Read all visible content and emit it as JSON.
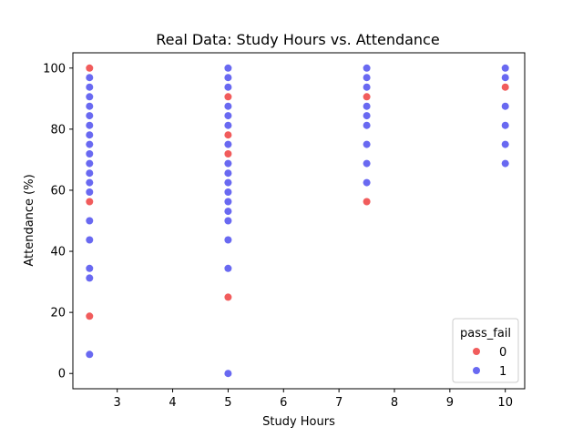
{
  "chart_data": {
    "type": "scatter",
    "title": "Real Data: Study Hours vs. Attendance",
    "xlabel": "Study Hours",
    "ylabel": "Attendance (%)",
    "xlim": [
      2.2,
      10.35
    ],
    "ylim": [
      -5,
      105
    ],
    "xticks": [
      3,
      4,
      5,
      6,
      7,
      8,
      9,
      10
    ],
    "yticks": [
      0,
      20,
      40,
      60,
      80,
      100
    ],
    "grid": false,
    "legend": {
      "title": "pass_fail",
      "placement": "lower-right"
    },
    "series": [
      {
        "name": "0",
        "color": "#ee3333",
        "points": [
          [
            2.5,
            100
          ],
          [
            2.5,
            56.25
          ],
          [
            2.5,
            18.75
          ],
          [
            5,
            90.6
          ],
          [
            5,
            78.1
          ],
          [
            5,
            71.9
          ],
          [
            5,
            25
          ],
          [
            7.5,
            90.6
          ],
          [
            7.5,
            56.25
          ],
          [
            10,
            93.75
          ]
        ]
      },
      {
        "name": "1",
        "color": "#4444ee",
        "points": [
          [
            2.5,
            96.9
          ],
          [
            2.5,
            93.75
          ],
          [
            2.5,
            90.6
          ],
          [
            2.5,
            87.5
          ],
          [
            2.5,
            84.4
          ],
          [
            2.5,
            81.25
          ],
          [
            2.5,
            78.1
          ],
          [
            2.5,
            75
          ],
          [
            2.5,
            71.9
          ],
          [
            2.5,
            68.75
          ],
          [
            2.5,
            65.6
          ],
          [
            2.5,
            62.5
          ],
          [
            2.5,
            59.4
          ],
          [
            2.5,
            50
          ],
          [
            2.5,
            43.75
          ],
          [
            2.5,
            34.4
          ],
          [
            2.5,
            31.25
          ],
          [
            2.5,
            6.25
          ],
          [
            5,
            100
          ],
          [
            5,
            96.9
          ],
          [
            5,
            93.75
          ],
          [
            5,
            87.5
          ],
          [
            5,
            84.4
          ],
          [
            5,
            81.25
          ],
          [
            5,
            75
          ],
          [
            5,
            68.75
          ],
          [
            5,
            65.6
          ],
          [
            5,
            62.5
          ],
          [
            5,
            59.4
          ],
          [
            5,
            56.25
          ],
          [
            5,
            53.1
          ],
          [
            5,
            50
          ],
          [
            5,
            43.75
          ],
          [
            5,
            34.4
          ],
          [
            5,
            0
          ],
          [
            7.5,
            100
          ],
          [
            7.5,
            96.9
          ],
          [
            7.5,
            93.75
          ],
          [
            7.5,
            87.5
          ],
          [
            7.5,
            84.4
          ],
          [
            7.5,
            81.25
          ],
          [
            7.5,
            75
          ],
          [
            7.5,
            68.75
          ],
          [
            7.5,
            62.5
          ],
          [
            10,
            100
          ],
          [
            10,
            96.9
          ],
          [
            10,
            87.5
          ],
          [
            10,
            81.25
          ],
          [
            10,
            75
          ],
          [
            10,
            68.75
          ]
        ]
      }
    ]
  }
}
